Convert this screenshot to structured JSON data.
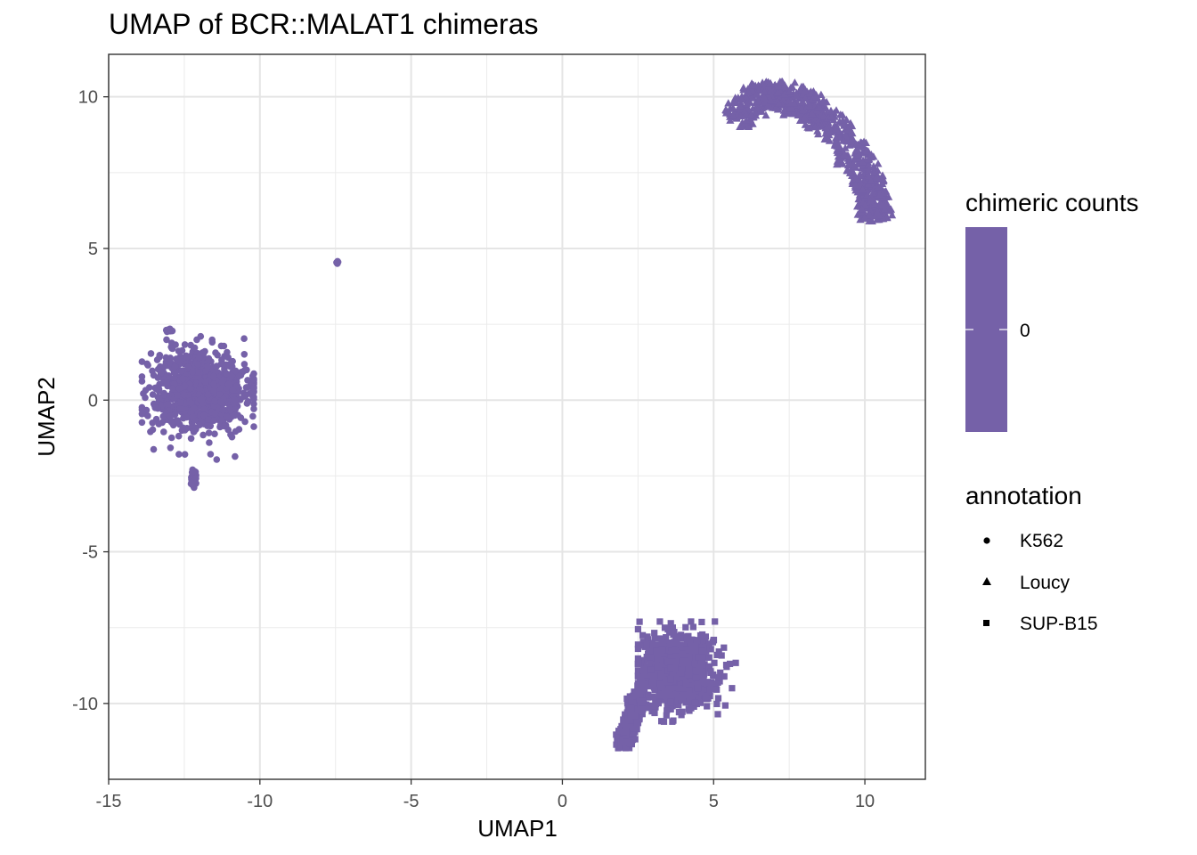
{
  "chart_data": {
    "type": "scatter",
    "title": "UMAP of BCR::MALAT1 chimeras",
    "xlabel": "UMAP1",
    "ylabel": "UMAP2",
    "xlim": [
      -15,
      12
    ],
    "ylim": [
      -12.5,
      11.4
    ],
    "x_ticks": [
      -15,
      -10,
      -5,
      0,
      5,
      10
    ],
    "y_ticks": [
      -10,
      -5,
      0,
      5,
      10
    ],
    "x_tick_labels": [
      "-15",
      "-10",
      "-5",
      "0",
      "5",
      "10"
    ],
    "y_tick_labels": [
      "-10",
      "-5",
      "0",
      "5",
      "10"
    ],
    "grid": true,
    "point_color": "#7561A8",
    "color_legend": {
      "title": "chimeric counts",
      "values": [
        "0"
      ],
      "color": "#7561A8"
    },
    "shape_legend": {
      "title": "annotation",
      "entries": [
        {
          "label": "K562",
          "shape": "circle"
        },
        {
          "label": "Loucy",
          "shape": "triangle"
        },
        {
          "label": "SUP-B15",
          "shape": "square"
        }
      ]
    },
    "series": [
      {
        "name": "K562",
        "shape": "circle",
        "color_value": 0,
        "clusters": [
          {
            "center": [
              -12.0,
              0.3
            ],
            "spread": [
              1.6,
              1.35
            ],
            "extent_x": [
              -13.9,
              -10.2
            ],
            "extent_y": [
              -3.1,
              2.1
            ],
            "approx_points": 2500
          },
          {
            "center": [
              -12.2,
              -2.6
            ],
            "spread": [
              0.1,
              0.3
            ],
            "extent_x": [
              -12.4,
              -11.9
            ],
            "extent_y": [
              -3.1,
              -2.2
            ],
            "approx_points": 40
          },
          {
            "center": [
              -13.0,
              2.3
            ],
            "spread": [
              0.15,
              0.05
            ],
            "extent_x": [
              -13.2,
              -12.8
            ],
            "extent_y": [
              2.2,
              2.4
            ],
            "approx_points": 10
          },
          {
            "center": [
              -7.45,
              4.55
            ],
            "spread": [
              0.05,
              0.05
            ],
            "extent_x": [
              -7.5,
              -7.4
            ],
            "extent_y": [
              4.5,
              4.6
            ],
            "approx_points": 4
          }
        ]
      },
      {
        "name": "Loucy",
        "shape": "triangle",
        "color_value": 0,
        "clusters": [
          {
            "path": [
              [
                5.7,
                9.2
              ],
              [
                6.6,
                10.2
              ],
              [
                7.6,
                9.9
              ],
              [
                8.6,
                9.4
              ],
              [
                9.4,
                8.5
              ],
              [
                10.0,
                7.4
              ],
              [
                10.3,
                6.6
              ],
              [
                10.4,
                6.0
              ]
            ],
            "width": 0.95,
            "extent_x": [
              5.4,
              10.9
            ],
            "extent_y": [
              5.9,
              10.5
            ],
            "approx_points": 2500
          }
        ]
      },
      {
        "name": "SUP-B15",
        "shape": "square",
        "color_value": 0,
        "clusters": [
          {
            "center": [
              3.8,
              -8.9
            ],
            "spread": [
              1.2,
              1.2
            ],
            "extent_x": [
              2.5,
              5.9
            ],
            "extent_y": [
              -10.6,
              -7.3
            ],
            "approx_points": 2000
          },
          {
            "path": [
              [
                2.6,
                -9.6
              ],
              [
                2.2,
                -10.8
              ],
              [
                2.0,
                -11.4
              ]
            ],
            "width": 0.4,
            "extent_x": [
              1.7,
              3.0
            ],
            "extent_y": [
              -11.7,
              -9.2
            ],
            "approx_points": 300
          }
        ]
      }
    ]
  }
}
